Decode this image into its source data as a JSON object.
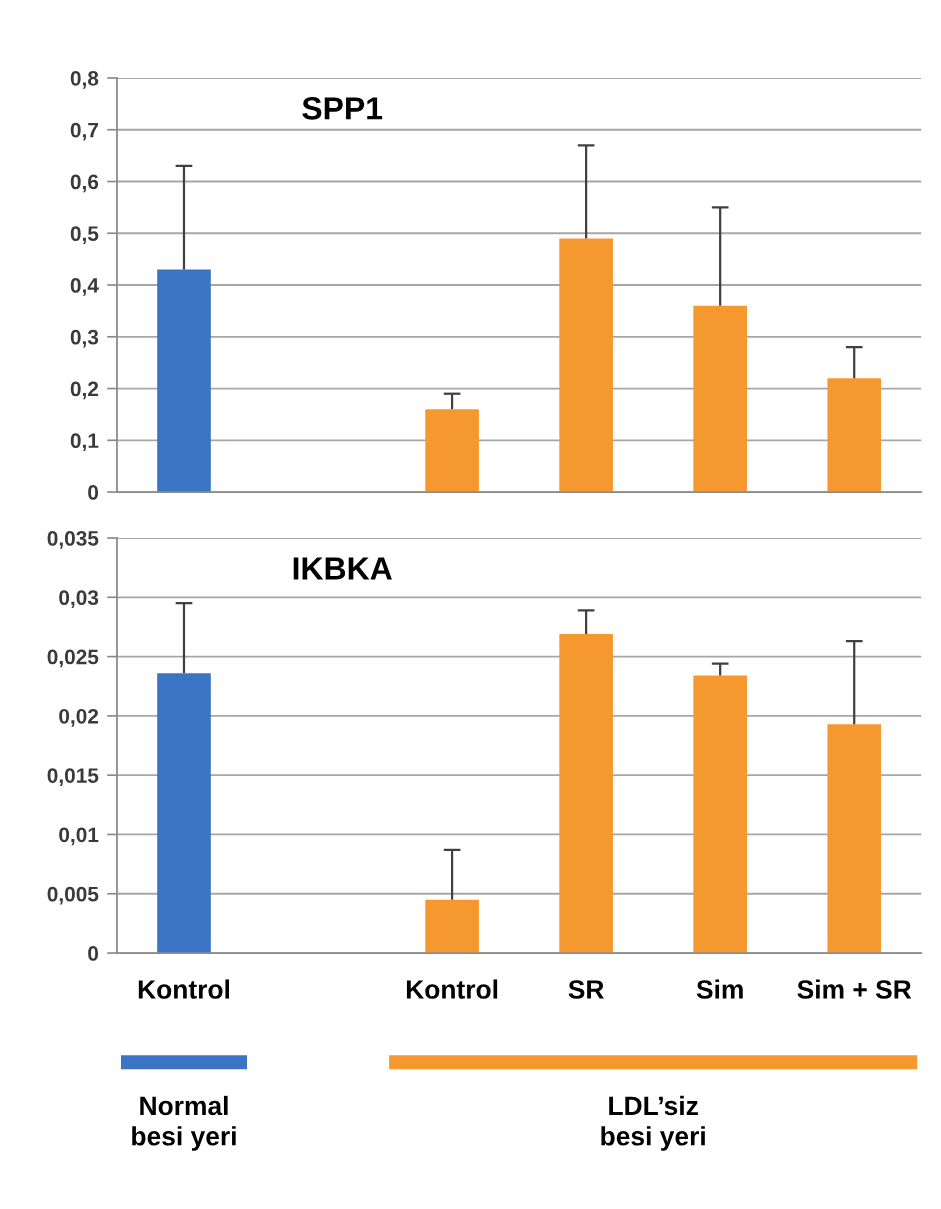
{
  "chart_data": [
    {
      "type": "bar",
      "title": "SPP1",
      "categories": [
        null,
        null,
        null,
        null,
        null,
        null
      ],
      "series": [
        {
          "color": "#3c74c4",
          "values": [
            0.43,
            null,
            null,
            null,
            null,
            null
          ],
          "errors": [
            [
              0.43,
              0.63
            ],
            null,
            null,
            null,
            null,
            null
          ]
        },
        {
          "color": "#f5982f",
          "values": [
            null,
            null,
            0.16,
            0.49,
            0.36,
            0.22
          ],
          "errors": [
            null,
            null,
            [
              0.16,
              0.19
            ],
            [
              0.49,
              0.67
            ],
            [
              0.36,
              0.55
            ],
            [
              0.22,
              0.28
            ]
          ]
        }
      ],
      "ylim": [
        0,
        0.8
      ],
      "yticks": [
        0,
        {
          "value": 0.1,
          "label": "0,1"
        },
        {
          "value": 0.2,
          "label": "0,2"
        },
        {
          "value": 0.3,
          "label": "0,3"
        },
        {
          "value": 0.4,
          "label": "0,4"
        },
        {
          "value": 0.5,
          "label": "0,5"
        },
        {
          "value": 0.6,
          "label": "0,6"
        },
        {
          "value": 0.7,
          "label": "0,7"
        },
        {
          "value": 0.8,
          "label": "0,8"
        }
      ],
      "grid": "y",
      "tick_labels": "y"
    },
    {
      "type": "bar",
      "title": "IKBKA",
      "categories": [
        "Kontrol",
        null,
        "Kontrol",
        "SR",
        "Sim",
        "Sim + SR"
      ],
      "series": [
        {
          "color": "#3c74c4",
          "values": [
            0.0236,
            null,
            null,
            null,
            null,
            null
          ],
          "errors": [
            [
              0.0236,
              0.0295
            ],
            null,
            null,
            null,
            null,
            null
          ]
        },
        {
          "color": "#f5982f",
          "values": [
            null,
            null,
            0.0045,
            0.0269,
            0.0234,
            0.0193
          ],
          "errors": [
            null,
            null,
            [
              0.0045,
              0.0087
            ],
            [
              0.0269,
              0.0289
            ],
            [
              0.0234,
              0.0244
            ],
            [
              0.0193,
              0.0263
            ]
          ]
        }
      ],
      "ylim": [
        0,
        0.035
      ],
      "yticks": [
        0,
        {
          "value": 0.005,
          "label": "0,005"
        },
        {
          "value": 0.01,
          "label": "0,01"
        },
        {
          "value": 0.015,
          "label": "0,015"
        },
        {
          "value": 0.02,
          "label": "0,02"
        },
        {
          "value": 0.025,
          "label": "0,025"
        },
        {
          "value": 0.03,
          "label": "0,03"
        },
        {
          "value": 0.035,
          "label": "0,035"
        }
      ],
      "grid": "y",
      "annotations": [
        "Normal besi yeri",
        "LDL’siz besi yeri"
      ]
    }
  ]
}
